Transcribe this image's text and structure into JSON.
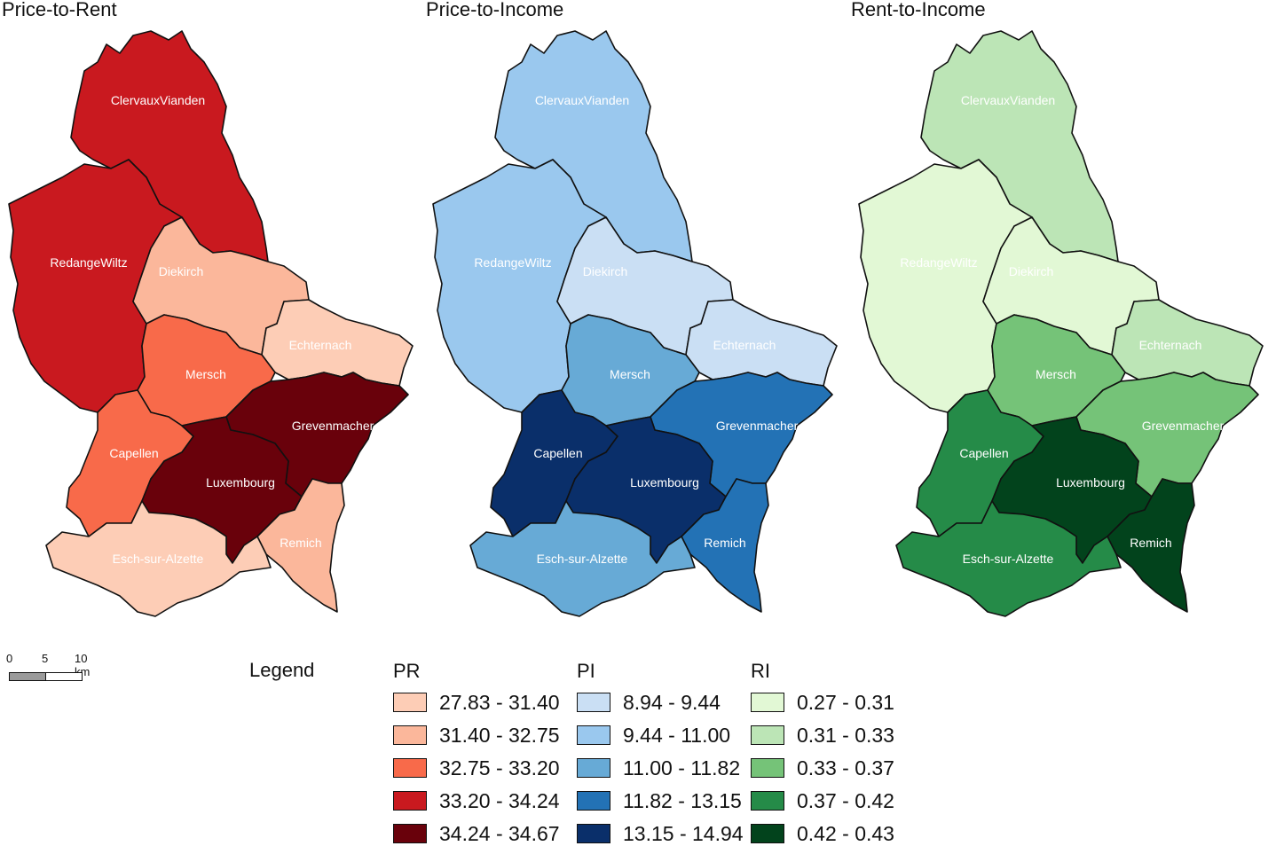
{
  "maps": [
    {
      "id": "pr",
      "title": "Price-to-Rent",
      "fills": {
        "ClervauxVianden": "#c9191f",
        "RedangeWiltz": "#c9191f",
        "Diekirch": "#fbb79b",
        "Echternach": "#fdcdb6",
        "Mersch": "#f86a4a",
        "Grevenmacher": "#69010b",
        "Capellen": "#f86a4a",
        "Luxembourg": "#69010b",
        "Remich": "#fbb79b",
        "EschSurAlzette": "#fdcdb6"
      }
    },
    {
      "id": "pi",
      "title": "Price-to-Income",
      "fills": {
        "ClervauxVianden": "#9ac8ee",
        "RedangeWiltz": "#9ac8ee",
        "Diekirch": "#cadff4",
        "Echternach": "#cadff4",
        "Mersch": "#67aad6",
        "Grevenmacher": "#2372b5",
        "Capellen": "#0a2f6a",
        "Luxembourg": "#0a2f6a",
        "Remich": "#2372b5",
        "EschSurAlzette": "#67aad6"
      }
    },
    {
      "id": "ri",
      "title": "Rent-to-Income",
      "fills": {
        "ClervauxVianden": "#bce5b6",
        "RedangeWiltz": "#e2f8d5",
        "Diekirch": "#e2f8d5",
        "Echternach": "#bce5b6",
        "Mersch": "#75c378",
        "Grevenmacher": "#75c378",
        "Capellen": "#258b48",
        "Luxembourg": "#02431c",
        "Remich": "#02431c",
        "EschSurAlzette": "#258b48"
      }
    }
  ],
  "region_labels": {
    "ClervauxVianden": "ClervauxVianden",
    "RedangeWiltz": "RedangeWiltz",
    "Diekirch": "Diekirch",
    "Echternach": "Echternach",
    "Mersch": "Mersch",
    "Grevenmacher": "Grevenmacher",
    "Capellen": "Capellen",
    "Luxembourg": "Luxembourg",
    "Remich": "Remich",
    "EschSurAlzette": "Esch-sur-Alzette"
  },
  "legend": {
    "title": "Legend",
    "groups": [
      {
        "key": "PR",
        "items": [
          {
            "label": "27.83 - 31.40",
            "color": "#fdcdb6"
          },
          {
            "label": "31.40 - 32.75",
            "color": "#fbb79b"
          },
          {
            "label": "32.75 - 33.20",
            "color": "#f86a4a"
          },
          {
            "label": "33.20 - 34.24",
            "color": "#c9191f"
          },
          {
            "label": "34.24 - 34.67",
            "color": "#69010b"
          }
        ]
      },
      {
        "key": "PI",
        "items": [
          {
            "label": "8.94 - 9.44",
            "color": "#cadff4"
          },
          {
            "label": "9.44 - 11.00",
            "color": "#9ac8ee"
          },
          {
            "label": "11.00 - 11.82",
            "color": "#67aad6"
          },
          {
            "label": "11.82 - 13.15",
            "color": "#2372b5"
          },
          {
            "label": "13.15 - 14.94",
            "color": "#0a2f6a"
          }
        ]
      },
      {
        "key": "RI",
        "items": [
          {
            "label": "0.27 - 0.31",
            "color": "#e2f8d5"
          },
          {
            "label": "0.31 - 0.33",
            "color": "#bce5b6"
          },
          {
            "label": "0.33 - 0.37",
            "color": "#75c378"
          },
          {
            "label": "0.37 - 0.42",
            "color": "#258b48"
          },
          {
            "label": "0.42 - 0.43",
            "color": "#02431c"
          }
        ]
      }
    ]
  },
  "scale_bar": {
    "labels": [
      "0",
      "5",
      "10 km"
    ]
  }
}
